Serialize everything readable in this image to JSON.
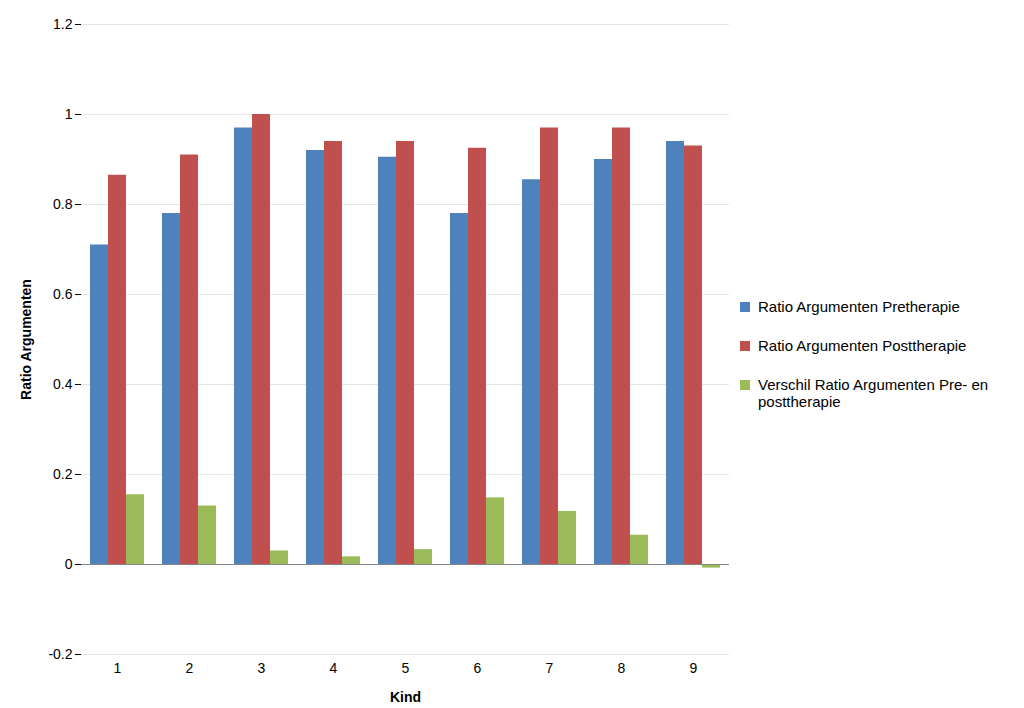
{
  "chart_data": {
    "type": "bar",
    "categories": [
      "1",
      "2",
      "3",
      "4",
      "5",
      "6",
      "7",
      "8",
      "9"
    ],
    "series": [
      {
        "name": "Ratio Argumenten Pretherapie",
        "color": "#4f81bd",
        "values": [
          0.71,
          0.78,
          0.97,
          0.92,
          0.905,
          0.78,
          0.855,
          0.9,
          0.94
        ]
      },
      {
        "name": "Ratio Argumenten Posttherapie",
        "color": "#c0504d",
        "values": [
          0.865,
          0.91,
          1.0,
          0.94,
          0.94,
          0.925,
          0.97,
          0.97,
          0.93
        ]
      },
      {
        "name": "Verschil Ratio Argumenten Pre- en posttherapie",
        "color": "#9bbb59",
        "values": [
          0.155,
          0.13,
          0.03,
          0.017,
          0.033,
          0.148,
          0.118,
          0.065,
          -0.008
        ]
      }
    ],
    "x_label": "Kind",
    "y_label": "Ratio Argumenten",
    "ylim": [
      -0.2,
      1.2
    ],
    "yticks": [
      -0.2,
      0,
      0.2,
      0.4,
      0.6,
      0.8,
      1,
      1.2
    ],
    "grid": true,
    "legend": "right"
  }
}
